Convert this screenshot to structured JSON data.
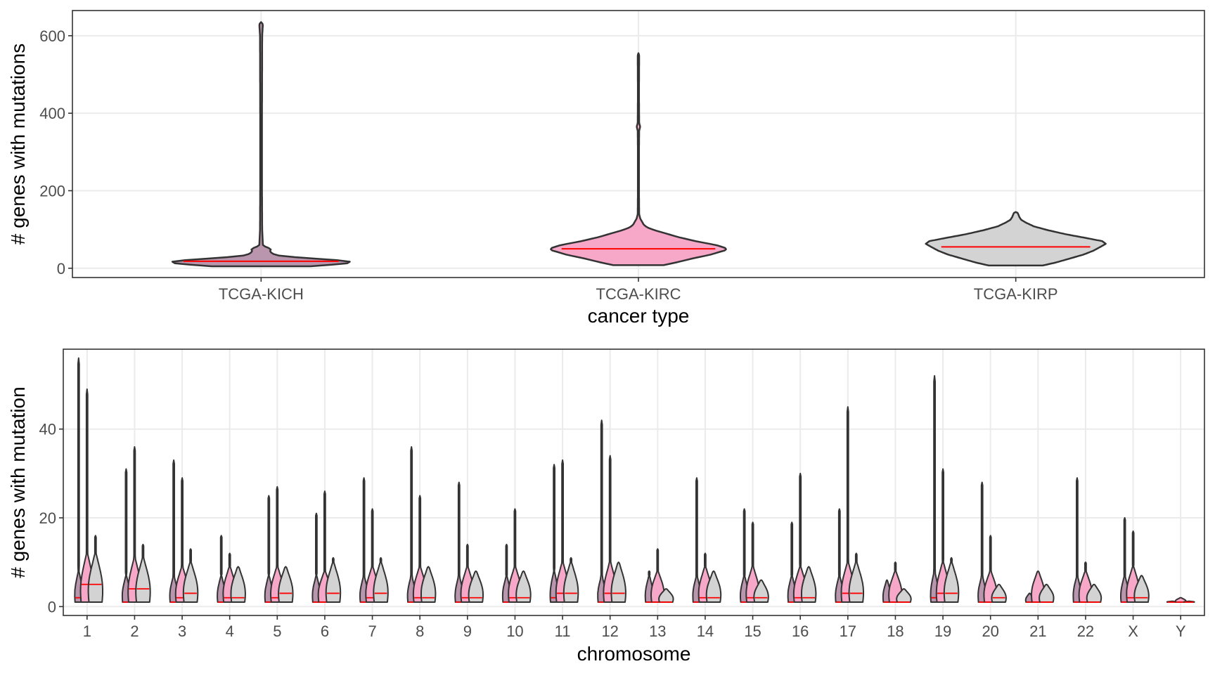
{
  "colors": {
    "kich_fill": "#b996ad",
    "kirc_fill": "#f7a8c8",
    "kirp_fill": "#d3d3d3",
    "outline": "#333333",
    "median": "#ff0000",
    "grid": "#ebebeb"
  },
  "chart_data": [
    {
      "type": "violin",
      "xlabel": "cancer type",
      "ylabel": "# genes with mutations",
      "categories": [
        "TCGA-KICH",
        "TCGA-KIRC",
        "TCGA-KIRP"
      ],
      "ylim": [
        -24,
        665
      ],
      "yticks": [
        0,
        200,
        400,
        600
      ],
      "grid": true,
      "series": [
        {
          "category": "TCGA-KICH",
          "fill": "kich_fill",
          "median": 18,
          "min": 5,
          "max": 635,
          "bulge_max": 55,
          "profile": [
            [
              5,
              0.55
            ],
            [
              10,
              0.85
            ],
            [
              14,
              1.0
            ],
            [
              18,
              0.98
            ],
            [
              22,
              0.78
            ],
            [
              27,
              0.45
            ],
            [
              33,
              0.18
            ],
            [
              38,
              0.12
            ],
            [
              44,
              0.1
            ],
            [
              50,
              0.11
            ],
            [
              55,
              0.05
            ],
            [
              60,
              0.02
            ],
            [
              100,
              0.012
            ],
            [
              200,
              0.01
            ],
            [
              400,
              0.01
            ],
            [
              600,
              0.012
            ],
            [
              630,
              0.02
            ],
            [
              635,
              0.0
            ]
          ]
        },
        {
          "category": "TCGA-KIRC",
          "fill": "kirc_fill",
          "median": 50,
          "min": 8,
          "max": 555,
          "bulge_max": 130,
          "profile": [
            [
              8,
              0.28
            ],
            [
              15,
              0.42
            ],
            [
              25,
              0.6
            ],
            [
              35,
              0.8
            ],
            [
              42,
              0.9
            ],
            [
              47,
              0.98
            ],
            [
              53,
              0.96
            ],
            [
              60,
              0.86
            ],
            [
              70,
              0.63
            ],
            [
              80,
              0.45
            ],
            [
              90,
              0.3
            ],
            [
              98,
              0.18
            ],
            [
              105,
              0.1
            ],
            [
              112,
              0.06
            ],
            [
              120,
              0.04
            ],
            [
              128,
              0.02
            ],
            [
              140,
              0.008
            ],
            [
              200,
              0.006
            ],
            [
              300,
              0.006
            ],
            [
              355,
              0.008
            ],
            [
              365,
              0.02
            ],
            [
              375,
              0.008
            ],
            [
              450,
              0.006
            ],
            [
              550,
              0.008
            ],
            [
              555,
              0.0
            ]
          ]
        },
        {
          "category": "TCGA-KIRP",
          "fill": "kirp_fill",
          "median": 55,
          "min": 7,
          "max": 145,
          "bulge_max": 145,
          "profile": [
            [
              7,
              0.3
            ],
            [
              15,
              0.45
            ],
            [
              25,
              0.6
            ],
            [
              35,
              0.75
            ],
            [
              45,
              0.86
            ],
            [
              55,
              0.94
            ],
            [
              63,
              1.0
            ],
            [
              70,
              0.96
            ],
            [
              78,
              0.78
            ],
            [
              88,
              0.55
            ],
            [
              98,
              0.36
            ],
            [
              108,
              0.2
            ],
            [
              118,
              0.11
            ],
            [
              125,
              0.06
            ],
            [
              132,
              0.04
            ],
            [
              138,
              0.03
            ],
            [
              143,
              0.02
            ],
            [
              145,
              0.0
            ]
          ]
        }
      ]
    },
    {
      "type": "split-violin",
      "xlabel": "chromosome",
      "ylabel": "# genes with mutation",
      "categories": [
        "1",
        "2",
        "3",
        "4",
        "5",
        "6",
        "7",
        "8",
        "9",
        "10",
        "11",
        "12",
        "13",
        "14",
        "15",
        "16",
        "17",
        "18",
        "19",
        "20",
        "21",
        "22",
        "X",
        "Y"
      ],
      "ylim": [
        -2,
        58
      ],
      "yticks": [
        0,
        20,
        40
      ],
      "grid": true,
      "group_order": [
        "TCGA-KICH",
        "TCGA-KIRC",
        "TCGA-KIRP"
      ],
      "group_fills": [
        "kich_fill",
        "kirc_fill",
        "kirp_fill"
      ],
      "max_values": [
        [
          56,
          49,
          16
        ],
        [
          31,
          36,
          14
        ],
        [
          33,
          29,
          13
        ],
        [
          16,
          12,
          9
        ],
        [
          25,
          27,
          9
        ],
        [
          21,
          26,
          11
        ],
        [
          29,
          22,
          11
        ],
        [
          36,
          25,
          9
        ],
        [
          28,
          14,
          8
        ],
        [
          14,
          22,
          8
        ],
        [
          32,
          33,
          11
        ],
        [
          42,
          34,
          10
        ],
        [
          8,
          13,
          4
        ],
        [
          29,
          12,
          8
        ],
        [
          22,
          19,
          6
        ],
        [
          19,
          30,
          9
        ],
        [
          22,
          45,
          12
        ],
        [
          6,
          10,
          4
        ],
        [
          52,
          31,
          11
        ],
        [
          28,
          16,
          5
        ],
        [
          3,
          8,
          5
        ],
        [
          29,
          10,
          5
        ],
        [
          20,
          17,
          7
        ],
        [
          1,
          2,
          1
        ]
      ],
      "medians": [
        [
          2,
          5,
          5
        ],
        [
          1,
          4,
          4
        ],
        [
          1,
          2,
          3
        ],
        [
          1,
          2,
          2
        ],
        [
          1,
          2,
          3
        ],
        [
          1,
          1,
          3
        ],
        [
          1,
          2,
          3
        ],
        [
          1,
          2,
          2
        ],
        [
          1,
          2,
          2
        ],
        [
          1,
          2,
          2
        ],
        [
          2,
          3,
          3
        ],
        [
          1,
          3,
          3
        ],
        [
          1,
          1,
          1
        ],
        [
          1,
          2,
          2
        ],
        [
          1,
          2,
          2
        ],
        [
          1,
          2,
          2
        ],
        [
          1,
          3,
          3
        ],
        [
          1,
          1,
          1
        ],
        [
          2,
          3,
          3
        ],
        [
          1,
          1,
          2
        ],
        [
          1,
          1,
          1
        ],
        [
          1,
          1,
          1
        ],
        [
          1,
          2,
          2
        ],
        [
          1,
          1,
          1
        ]
      ]
    }
  ]
}
